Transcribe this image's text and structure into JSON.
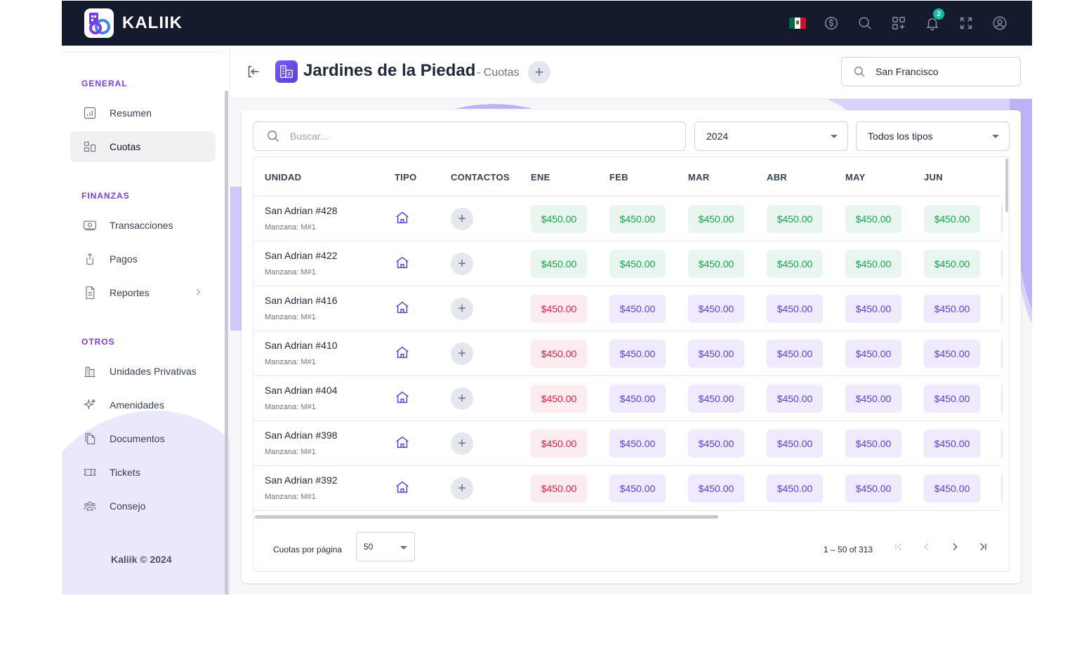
{
  "brand": {
    "name": "KALIIK"
  },
  "topbar": {
    "notifications_count": "2",
    "icons": [
      "mexico-flag",
      "currency-icon",
      "search-icon",
      "apps-icon",
      "bell-icon",
      "fullscreen-icon",
      "user-circle-icon"
    ]
  },
  "sidebar": {
    "sections": [
      {
        "title": "GENERAL",
        "items": [
          {
            "label": "Resumen",
            "icon": "chart-icon"
          },
          {
            "label": "Cuotas",
            "icon": "blocks-icon",
            "active": true
          }
        ]
      },
      {
        "title": "FINANZAS",
        "items": [
          {
            "label": "Transacciones",
            "icon": "money-icon"
          },
          {
            "label": "Pagos",
            "icon": "payment-icon"
          },
          {
            "label": "Reportes",
            "icon": "report-icon",
            "has_children": true
          }
        ]
      },
      {
        "title": "OTROS",
        "items": [
          {
            "label": "Unidades Privativas",
            "icon": "buildings-icon"
          },
          {
            "label": "Amenidades",
            "icon": "sparkles-icon"
          },
          {
            "label": "Documentos",
            "icon": "documents-icon"
          },
          {
            "label": "Tickets",
            "icon": "ticket-icon"
          },
          {
            "label": "Consejo",
            "icon": "group-icon"
          }
        ]
      }
    ],
    "footer": "Kaliik © 2024"
  },
  "header": {
    "title": "Jardines de la Piedad",
    "subtitle": "- Cuotas",
    "search_value": "San Francisco"
  },
  "filters": {
    "search_placeholder": "Buscar...",
    "year": "2024",
    "type": "Todos los tipos"
  },
  "table": {
    "columns": [
      "UNIDAD",
      "TIPO",
      "CONTACTOS",
      "ENE",
      "FEB",
      "MAR",
      "ABR",
      "MAY",
      "JUN"
    ],
    "rows": [
      {
        "unit": "San Adrian #428",
        "sub": "Manzana: M#1",
        "fees": [
          "$450.00",
          "$450.00",
          "$450.00",
          "$450.00",
          "$450.00",
          "$450.00"
        ],
        "status": [
          "paid",
          "paid",
          "paid",
          "paid",
          "paid",
          "paid"
        ]
      },
      {
        "unit": "San Adrian #422",
        "sub": "Manzana: M#1",
        "fees": [
          "$450.00",
          "$450.00",
          "$450.00",
          "$450.00",
          "$450.00",
          "$450.00"
        ],
        "status": [
          "paid",
          "paid",
          "paid",
          "paid",
          "paid",
          "paid"
        ]
      },
      {
        "unit": "San Adrian #416",
        "sub": "Manzana: M#1",
        "fees": [
          "$450.00",
          "$450.00",
          "$450.00",
          "$450.00",
          "$450.00",
          "$450.00"
        ],
        "status": [
          "late",
          "pend",
          "pend",
          "pend",
          "pend",
          "pend"
        ]
      },
      {
        "unit": "San Adrian #410",
        "sub": "Manzana: M#1",
        "fees": [
          "$450.00",
          "$450.00",
          "$450.00",
          "$450.00",
          "$450.00",
          "$450.00"
        ],
        "status": [
          "late",
          "pend",
          "pend",
          "pend",
          "pend",
          "pend"
        ]
      },
      {
        "unit": "San Adrian #404",
        "sub": "Manzana: M#1",
        "fees": [
          "$450.00",
          "$450.00",
          "$450.00",
          "$450.00",
          "$450.00",
          "$450.00"
        ],
        "status": [
          "late",
          "pend",
          "pend",
          "pend",
          "pend",
          "pend"
        ]
      },
      {
        "unit": "San Adrian #398",
        "sub": "Manzana: M#1",
        "fees": [
          "$450.00",
          "$450.00",
          "$450.00",
          "$450.00",
          "$450.00",
          "$450.00"
        ],
        "status": [
          "late",
          "pend",
          "pend",
          "pend",
          "pend",
          "pend"
        ]
      },
      {
        "unit": "San Adrian #392",
        "sub": "Manzana: M#1",
        "fees": [
          "$450.00",
          "$450.00",
          "$450.00",
          "$450.00",
          "$450.00",
          "$450.00"
        ],
        "status": [
          "late",
          "pend",
          "pend",
          "pend",
          "pend",
          "pend"
        ]
      }
    ]
  },
  "pagination": {
    "label": "Cuotas por página",
    "page_size": "50",
    "range": "1 – 50 of 313"
  },
  "colors": {
    "topbar_bg": "#151a2d",
    "accent": "#7c3aed",
    "paid": "#16a34a",
    "late": "#e11d48",
    "pending": "#5b3fd6"
  }
}
